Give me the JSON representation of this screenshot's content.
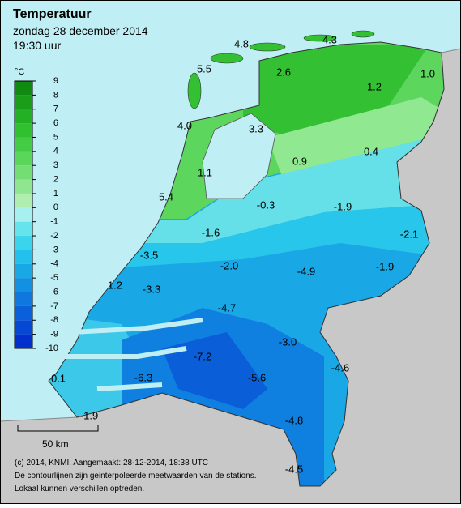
{
  "header": {
    "title": "Temperatuur",
    "date": "zondag 28 december 2014",
    "time": "19:30 uur"
  },
  "legend": {
    "unit": "°C",
    "ticks": [
      9,
      8,
      7,
      6,
      5,
      4,
      3,
      2,
      1,
      0,
      -1,
      -2,
      -3,
      -4,
      -5,
      -6,
      -7,
      -8,
      -9,
      -10
    ],
    "colors": [
      "#108a10",
      "#1a9e1a",
      "#24b024",
      "#30c030",
      "#44cc44",
      "#5ad65a",
      "#74de74",
      "#90e690",
      "#b0eeb0",
      "#a8f0f0",
      "#66e4ec",
      "#3ad4ec",
      "#22c0ea",
      "#18a8e6",
      "#1290e2",
      "#0e78de",
      "#0a60da",
      "#0648d4",
      "#0230cc"
    ]
  },
  "stations": [
    "4.8",
    "4.3",
    "5.5",
    "2.6",
    "1.2",
    "1.0",
    "4.0",
    "3.3",
    "0.9",
    "0.4",
    "1.1",
    "5.4",
    "-0.3",
    "-1.9",
    "-1.6",
    "-2.1",
    "-3.5",
    "-2.0",
    "-4.9",
    "-1.9",
    "1.2",
    "-3.3",
    "-4.7",
    "-3.0",
    "-7.2",
    "-4.6",
    "0.1",
    "-6.3",
    "-5.6",
    "-1.9",
    "-4.8",
    "-4.5"
  ],
  "scale": "50 km",
  "footer": [
    "(c) 2014, KNMI. Aangemaakt: 28-12-2014, 18:38 UTC",
    "De contourlijnen zijn geinterpoleerde meetwaarden van de stations.",
    "Lokaal kunnen verschillen optreden."
  ]
}
